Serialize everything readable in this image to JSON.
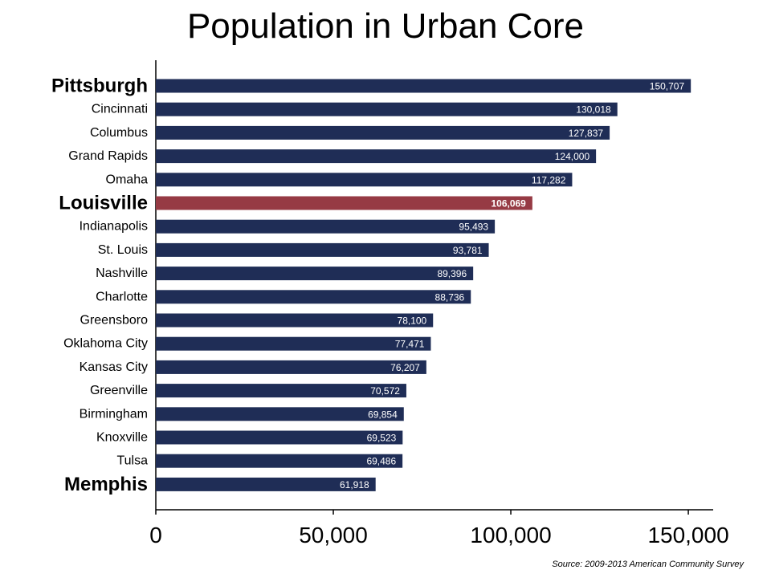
{
  "chart_data": {
    "type": "bar",
    "orientation": "horizontal",
    "title": "Population in Urban Core",
    "source": "Source:  2009-2013  American Community Survey",
    "xlim": [
      0,
      157000
    ],
    "xticks": [
      0,
      50000,
      100000,
      150000
    ],
    "xtick_labels": [
      "0",
      "50,000",
      "100,000",
      "150,000"
    ],
    "grid": false,
    "legend": "none",
    "colors": {
      "default": "#1f2d56",
      "highlight": "#963a44"
    },
    "categories": [
      "Pittsburgh",
      "Cincinnati",
      "Columbus",
      "Grand Rapids",
      "Omaha",
      "Louisville",
      "Indianapolis",
      "St. Louis",
      "Nashville",
      "Charlotte",
      "Greensboro",
      "Oklahoma City",
      "Kansas City",
      "Greenville",
      "Birmingham",
      "Knoxville",
      "Tulsa",
      "Memphis"
    ],
    "values": [
      150707,
      130018,
      127837,
      124000,
      117282,
      106069,
      95493,
      93781,
      89396,
      88736,
      78100,
      77471,
      76207,
      70572,
      69854,
      69523,
      69486,
      61918
    ],
    "value_labels": [
      "150,707",
      "130,018",
      "127,837",
      "124,000",
      "117,282",
      "106,069",
      "95,493",
      "93,781",
      "89,396",
      "88,736",
      "78,100",
      "77,471",
      "76,207",
      "70,572",
      "69,854",
      "69,523",
      "69,486",
      "61,918"
    ],
    "emphasized": [
      "Pittsburgh",
      "Louisville",
      "Memphis"
    ],
    "highlighted": [
      "Louisville"
    ]
  }
}
